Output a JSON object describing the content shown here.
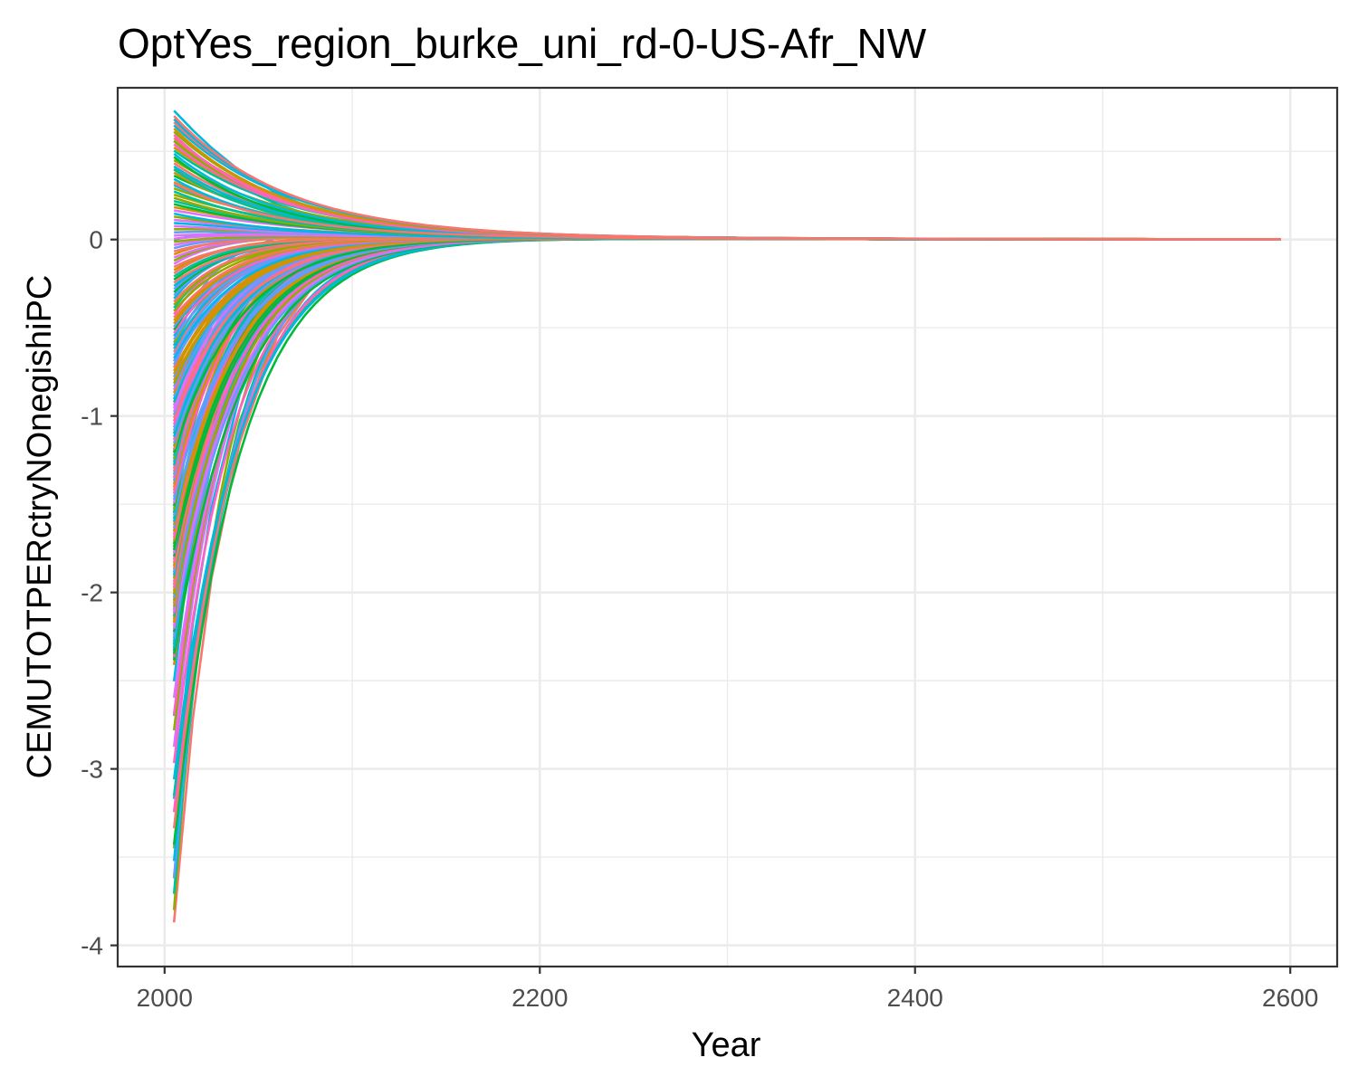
{
  "chart_data": {
    "type": "line",
    "title": "OptYes_region_burke_uni_rd-0-US-Afr_NW",
    "xlabel": "Year",
    "ylabel": "CEMUTOTPERctryNOnegishiPC",
    "xlim": [
      1975,
      2625
    ],
    "ylim": [
      -4.12,
      0.86
    ],
    "x_ticks": [
      2000,
      2200,
      2400,
      2600
    ],
    "x_tick_labels": [
      "2000",
      "2200",
      "2400",
      "2600"
    ],
    "y_ticks": [
      -4,
      -3,
      -2,
      -1,
      0
    ],
    "y_tick_labels": [
      "-4",
      "-3",
      "-2",
      "-1",
      "0"
    ],
    "x_start": 2005,
    "x_end": 2595,
    "grid": true,
    "legend": "none",
    "colors": [
      "#F8766D",
      "#D39200",
      "#93AA00",
      "#00BA38",
      "#00C19F",
      "#00B9E3",
      "#619CFF",
      "#DB72FB",
      "#FF61C3"
    ],
    "series_summary": "~200 unnamed regional series; each starts at 2005 with a value between -3.87 and 0.73 and decays toward 0 by ~2200, remaining ~0 through 2595",
    "series": [
      {
        "color": "#F8766D",
        "x": [
          2005,
          2015,
          2025,
          2040,
          2060,
          2080,
          2100,
          2130,
          2160,
          2200,
          2300,
          2400,
          2500,
          2595
        ],
        "y": [
          -3.87,
          -2.72,
          -1.92,
          -1.15,
          -0.55,
          -0.25,
          -0.11,
          -0.03,
          0.0,
          0.01,
          0.01,
          0.0,
          0.0,
          0.0
        ]
      },
      {
        "color": "#D39200",
        "x": [
          2005,
          2015,
          2025,
          2040,
          2060,
          2080,
          2100,
          2130,
          2160,
          2200,
          2300,
          2400,
          2500,
          2595
        ],
        "y": [
          -3.62,
          -2.55,
          -1.8,
          -1.08,
          -0.52,
          -0.24,
          -0.1,
          -0.02,
          0.01,
          0.01,
          0.01,
          0.0,
          0.0,
          0.0
        ]
      },
      {
        "color": "#93AA00",
        "x": [
          2005,
          2015,
          2025,
          2040,
          2060,
          2080,
          2100,
          2130,
          2160,
          2200,
          2300,
          2400,
          2500,
          2595
        ],
        "y": [
          -3.45,
          -2.43,
          -1.72,
          -1.03,
          -0.49,
          -0.22,
          -0.09,
          -0.02,
          0.01,
          0.01,
          0.01,
          0.0,
          0.0,
          0.0
        ]
      },
      {
        "color": "#00B9E3",
        "x": [
          2005,
          2015,
          2025,
          2040,
          2060,
          2080,
          2100,
          2130,
          2160,
          2200,
          2300,
          2400,
          2500,
          2595
        ],
        "y": [
          -3.17,
          -2.18,
          -1.52,
          -0.88,
          -0.4,
          -0.17,
          -0.06,
          0.0,
          0.02,
          0.02,
          0.01,
          0.0,
          0.0,
          0.0
        ]
      },
      {
        "color": "#619CFF",
        "x": [
          2005,
          2015,
          2025,
          2040,
          2060,
          2080,
          2100,
          2130,
          2160,
          2200,
          2300,
          2400,
          2500,
          2595
        ],
        "y": [
          -2.7,
          -1.82,
          -1.25,
          -0.71,
          -0.31,
          -0.12,
          -0.03,
          0.01,
          0.02,
          0.02,
          0.01,
          0.0,
          0.0,
          0.0
        ]
      },
      {
        "color": "#DB72FB",
        "x": [
          2005,
          2015,
          2025,
          2040,
          2060,
          2080,
          2100,
          2130,
          2160,
          2200,
          2300,
          2400,
          2500,
          2595
        ],
        "y": [
          -2.37,
          -1.58,
          -1.07,
          -0.6,
          -0.25,
          -0.09,
          -0.02,
          0.01,
          0.02,
          0.02,
          0.01,
          0.0,
          0.0,
          0.0
        ]
      },
      {
        "color": "#FF61C3",
        "x": [
          2005,
          2015,
          2025,
          2040,
          2060,
          2080,
          2100,
          2130,
          2160,
          2200,
          2300,
          2400,
          2500,
          2595
        ],
        "y": [
          -2.1,
          -1.35,
          -0.9,
          -0.49,
          -0.19,
          -0.06,
          0.0,
          0.02,
          0.02,
          0.02,
          0.01,
          0.0,
          0.0,
          0.0
        ]
      },
      {
        "color": "#00BA38",
        "x": [
          2005,
          2015,
          2025,
          2040,
          2060,
          2080,
          2100,
          2130,
          2160,
          2200,
          2300,
          2400,
          2500,
          2595
        ],
        "y": [
          -1.55,
          -1.0,
          -0.66,
          -0.35,
          -0.12,
          -0.02,
          0.02,
          0.03,
          0.02,
          0.02,
          0.01,
          0.0,
          0.0,
          0.0
        ]
      },
      {
        "color": "#F8766D",
        "x": [
          2005,
          2015,
          2025,
          2040,
          2060,
          2080,
          2100,
          2130,
          2160,
          2200,
          2300,
          2400,
          2500,
          2595
        ],
        "y": [
          -1.2,
          -0.76,
          -0.49,
          -0.24,
          -0.07,
          0.0,
          0.03,
          0.03,
          0.03,
          0.02,
          0.01,
          0.0,
          0.0,
          0.0
        ]
      },
      {
        "color": "#619CFF",
        "x": [
          2005,
          2015,
          2025,
          2040,
          2060,
          2080,
          2100,
          2130,
          2160,
          2200,
          2300,
          2400,
          2500,
          2595
        ],
        "y": [
          -0.6,
          -0.35,
          -0.2,
          -0.07,
          0.01,
          0.03,
          0.04,
          0.03,
          0.03,
          0.02,
          0.01,
          0.0,
          0.0,
          0.0
        ]
      },
      {
        "color": "#00BA38",
        "x": [
          2005,
          2015,
          2025,
          2040,
          2060,
          2080,
          2100,
          2130,
          2160,
          2200,
          2300,
          2400,
          2500,
          2595
        ],
        "y": [
          0.0,
          0.02,
          0.03,
          0.04,
          0.04,
          0.04,
          0.04,
          0.03,
          0.03,
          0.02,
          0.01,
          0.0,
          0.0,
          0.0
        ]
      },
      {
        "color": "#D39200",
        "x": [
          2005,
          2015,
          2025,
          2040,
          2060,
          2080,
          2100,
          2130,
          2160,
          2200,
          2300,
          2400,
          2500,
          2595
        ],
        "y": [
          0.4,
          0.34,
          0.29,
          0.22,
          0.15,
          0.1,
          0.07,
          0.05,
          0.03,
          0.02,
          0.01,
          0.0,
          0.0,
          0.0
        ]
      },
      {
        "color": "#00C19F",
        "x": [
          2005,
          2015,
          2025,
          2040,
          2060,
          2080,
          2100,
          2130,
          2160,
          2200,
          2300,
          2400,
          2500,
          2595
        ],
        "y": [
          0.56,
          0.48,
          0.4,
          0.3,
          0.2,
          0.13,
          0.09,
          0.05,
          0.03,
          0.02,
          0.01,
          0.0,
          0.0,
          0.0
        ]
      },
      {
        "color": "#00B9E3",
        "x": [
          2005,
          2015,
          2025,
          2040,
          2060,
          2080,
          2100,
          2130,
          2160,
          2200,
          2300,
          2400,
          2500,
          2595
        ],
        "y": [
          0.73,
          0.62,
          0.52,
          0.39,
          0.26,
          0.17,
          0.11,
          0.06,
          0.04,
          0.02,
          0.01,
          0.0,
          0.0,
          0.0
        ]
      }
    ]
  }
}
